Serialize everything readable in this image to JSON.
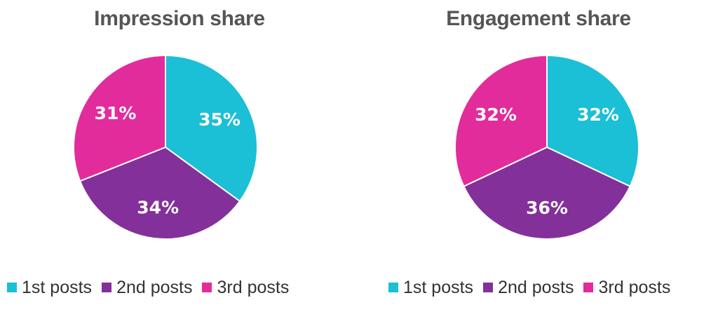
{
  "chart_data": [
    {
      "type": "pie",
      "title": "Impression share",
      "categories": [
        "1st posts",
        "2nd posts",
        "3rd posts"
      ],
      "values": [
        35,
        34,
        31
      ],
      "labels": [
        "35%",
        "34%",
        "31%"
      ],
      "colors": [
        "#1bbfd6",
        "#83309a",
        "#e22c9c"
      ],
      "start_angle": "12 o'clock",
      "direction": "clockwise",
      "legend": "bottom"
    },
    {
      "type": "pie",
      "title": "Engagement share",
      "categories": [
        "1st posts",
        "2nd posts",
        "3rd posts"
      ],
      "values": [
        32,
        36,
        32
      ],
      "labels": [
        "32%",
        "36%",
        "32%"
      ],
      "colors": [
        "#1bbfd6",
        "#83309a",
        "#e22c9c"
      ],
      "start_angle": "12 o'clock",
      "direction": "clockwise",
      "legend": "bottom"
    }
  ]
}
